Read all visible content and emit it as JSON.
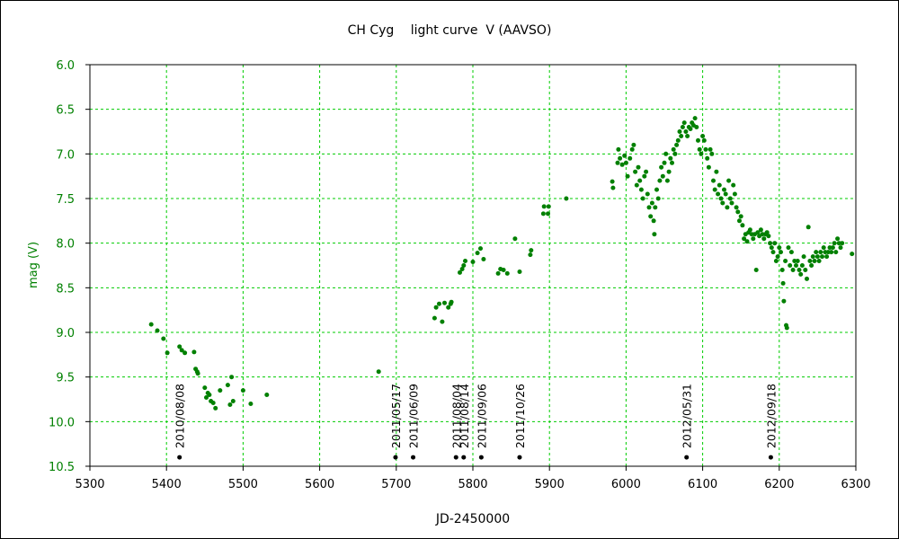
{
  "chart_data": {
    "type": "scatter",
    "title": "CH Cyg　 light curve  V (AAVSO)",
    "xlabel": "JD-2450000",
    "ylabel": "mag (V)",
    "xlim": [
      5300,
      6300
    ],
    "ylim": [
      6.0,
      10.5
    ],
    "y_inverted": true,
    "grid": true,
    "colors": {
      "points": "#008000",
      "y_ticks": "#008000",
      "x_ticks": "#000000",
      "grid": "#00cc00",
      "markers": "#000000"
    },
    "x_ticks": [
      5300,
      5400,
      5500,
      5600,
      5700,
      5800,
      5900,
      6000,
      6100,
      6200,
      6300
    ],
    "y_ticks": [
      "6.0",
      "6.5",
      "7.0",
      "7.5",
      "8.0",
      "8.5",
      "9.0",
      "9.5",
      "10.0",
      "10.5"
    ],
    "series": [
      {
        "points": [
          [
            5380,
            8.91
          ],
          [
            5388,
            8.98
          ],
          [
            5396,
            9.07
          ],
          [
            5401,
            9.23
          ],
          [
            5417,
            9.16
          ],
          [
            5420,
            9.2
          ],
          [
            5424,
            9.23
          ],
          [
            5436,
            9.22
          ],
          [
            5438,
            9.41
          ],
          [
            5440,
            9.44
          ],
          [
            5441,
            9.46
          ],
          [
            5450,
            9.62
          ],
          [
            5452,
            9.73
          ],
          [
            5454,
            9.68
          ],
          [
            5456,
            9.7
          ],
          [
            5458,
            9.77
          ],
          [
            5461,
            9.79
          ],
          [
            5464,
            9.85
          ],
          [
            5470,
            9.65
          ],
          [
            5480,
            9.59
          ],
          [
            5483,
            9.81
          ],
          [
            5485,
            9.5
          ],
          [
            5487,
            9.77
          ],
          [
            5500,
            9.65
          ],
          [
            5510,
            9.8
          ],
          [
            5531,
            9.7
          ],
          [
            5677,
            9.44
          ],
          [
            5750,
            8.84
          ],
          [
            5752,
            8.72
          ],
          [
            5756,
            8.68
          ],
          [
            5760,
            8.88
          ],
          [
            5763,
            8.67
          ],
          [
            5768,
            8.72
          ],
          [
            5771,
            8.68
          ],
          [
            5772,
            8.66
          ],
          [
            5783,
            8.33
          ],
          [
            5786,
            8.29
          ],
          [
            5788,
            8.25
          ],
          [
            5790,
            8.2
          ],
          [
            5800,
            8.21
          ],
          [
            5806,
            8.11
          ],
          [
            5810,
            8.06
          ],
          [
            5814,
            8.18
          ],
          [
            5833,
            8.34
          ],
          [
            5836,
            8.29
          ],
          [
            5840,
            8.3
          ],
          [
            5845,
            8.34
          ],
          [
            5855,
            7.95
          ],
          [
            5861,
            8.32
          ],
          [
            5875,
            8.13
          ],
          [
            5876,
            8.08
          ],
          [
            5892,
            7.67
          ],
          [
            5893,
            7.59
          ],
          [
            5898,
            7.67
          ],
          [
            5899,
            7.59
          ],
          [
            5922,
            7.5
          ],
          [
            5982,
            7.31
          ],
          [
            5983,
            7.38
          ],
          [
            5989,
            7.1
          ],
          [
            5990,
            6.95
          ],
          [
            5992,
            7.05
          ],
          [
            5995,
            7.12
          ],
          [
            5998,
            7.02
          ],
          [
            6000,
            7.1
          ],
          [
            6002,
            7.25
          ],
          [
            6005,
            7.05
          ],
          [
            6008,
            6.95
          ],
          [
            6010,
            6.9
          ],
          [
            6012,
            7.2
          ],
          [
            6014,
            7.35
          ],
          [
            6016,
            7.15
          ],
          [
            6018,
            7.3
          ],
          [
            6020,
            7.4
          ],
          [
            6022,
            7.5
          ],
          [
            6024,
            7.25
          ],
          [
            6026,
            7.2
          ],
          [
            6028,
            7.45
          ],
          [
            6030,
            7.6
          ],
          [
            6032,
            7.7
          ],
          [
            6034,
            7.55
          ],
          [
            6036,
            7.75
          ],
          [
            6037,
            7.9
          ],
          [
            6038,
            7.6
          ],
          [
            6040,
            7.4
          ],
          [
            6042,
            7.5
          ],
          [
            6044,
            7.3
          ],
          [
            6046,
            7.15
          ],
          [
            6048,
            7.25
          ],
          [
            6050,
            7.1
          ],
          [
            6052,
            7.0
          ],
          [
            6054,
            7.3
          ],
          [
            6056,
            7.2
          ],
          [
            6058,
            7.05
          ],
          [
            6060,
            7.1
          ],
          [
            6062,
            6.95
          ],
          [
            6064,
            7.0
          ],
          [
            6066,
            6.9
          ],
          [
            6068,
            6.85
          ],
          [
            6070,
            6.75
          ],
          [
            6072,
            6.8
          ],
          [
            6074,
            6.7
          ],
          [
            6076,
            6.65
          ],
          [
            6078,
            6.75
          ],
          [
            6080,
            6.8
          ],
          [
            6082,
            6.7
          ],
          [
            6084,
            6.72
          ],
          [
            6086,
            6.65
          ],
          [
            6088,
            6.68
          ],
          [
            6090,
            6.6
          ],
          [
            6092,
            6.7
          ],
          [
            6094,
            6.85
          ],
          [
            6096,
            6.95
          ],
          [
            6098,
            7.0
          ],
          [
            6100,
            6.8
          ],
          [
            6102,
            6.85
          ],
          [
            6104,
            6.95
          ],
          [
            6106,
            7.05
          ],
          [
            6108,
            7.15
          ],
          [
            6110,
            6.95
          ],
          [
            6112,
            7.0
          ],
          [
            6114,
            7.3
          ],
          [
            6116,
            7.4
          ],
          [
            6118,
            7.2
          ],
          [
            6120,
            7.45
          ],
          [
            6122,
            7.35
          ],
          [
            6124,
            7.5
          ],
          [
            6126,
            7.55
          ],
          [
            6128,
            7.4
          ],
          [
            6130,
            7.45
          ],
          [
            6132,
            7.6
          ],
          [
            6134,
            7.3
          ],
          [
            6136,
            7.5
          ],
          [
            6138,
            7.55
          ],
          [
            6140,
            7.35
          ],
          [
            6142,
            7.45
          ],
          [
            6144,
            7.6
          ],
          [
            6146,
            7.65
          ],
          [
            6148,
            7.75
          ],
          [
            6150,
            7.7
          ],
          [
            6152,
            7.8
          ],
          [
            6154,
            7.95
          ],
          [
            6156,
            7.9
          ],
          [
            6158,
            7.98
          ],
          [
            6160,
            7.88
          ],
          [
            6162,
            7.85
          ],
          [
            6164,
            7.9
          ],
          [
            6166,
            7.95
          ],
          [
            6168,
            7.9
          ],
          [
            6170,
            8.3
          ],
          [
            6172,
            7.88
          ],
          [
            6174,
            7.92
          ],
          [
            6176,
            7.85
          ],
          [
            6178,
            7.9
          ],
          [
            6180,
            7.95
          ],
          [
            6182,
            7.9
          ],
          [
            6184,
            7.88
          ],
          [
            6186,
            7.92
          ],
          [
            6188,
            8.0
          ],
          [
            6190,
            8.05
          ],
          [
            6192,
            8.1
          ],
          [
            6194,
            8.0
          ],
          [
            6196,
            8.2
          ],
          [
            6198,
            8.15
          ],
          [
            6200,
            8.05
          ],
          [
            6202,
            8.1
          ],
          [
            6204,
            8.3
          ],
          [
            6205,
            8.45
          ],
          [
            6206,
            8.65
          ],
          [
            6208,
            8.2
          ],
          [
            6209,
            8.92
          ],
          [
            6210,
            8.95
          ],
          [
            6212,
            8.05
          ],
          [
            6214,
            8.25
          ],
          [
            6216,
            8.1
          ],
          [
            6218,
            8.3
          ],
          [
            6220,
            8.2
          ],
          [
            6222,
            8.25
          ],
          [
            6224,
            8.2
          ],
          [
            6226,
            8.3
          ],
          [
            6228,
            8.35
          ],
          [
            6230,
            8.25
          ],
          [
            6232,
            8.15
          ],
          [
            6234,
            8.3
          ],
          [
            6236,
            8.4
          ],
          [
            6238,
            7.82
          ],
          [
            6240,
            8.2
          ],
          [
            6242,
            8.25
          ],
          [
            6244,
            8.15
          ],
          [
            6246,
            8.2
          ],
          [
            6248,
            8.1
          ],
          [
            6250,
            8.15
          ],
          [
            6252,
            8.2
          ],
          [
            6254,
            8.1
          ],
          [
            6256,
            8.15
          ],
          [
            6258,
            8.05
          ],
          [
            6260,
            8.1
          ],
          [
            6262,
            8.15
          ],
          [
            6264,
            8.1
          ],
          [
            6266,
            8.05
          ],
          [
            6268,
            8.1
          ],
          [
            6270,
            8.05
          ],
          [
            6272,
            8.0
          ],
          [
            6274,
            8.1
          ],
          [
            6276,
            7.95
          ],
          [
            6278,
            8.0
          ],
          [
            6280,
            8.05
          ],
          [
            6282,
            8.0
          ],
          [
            6295,
            8.12
          ]
        ]
      }
    ],
    "annotations": [
      {
        "date": "2010/08/08",
        "x": 5417
      },
      {
        "date": "2011/05/17",
        "x": 5699
      },
      {
        "date": "2011/06/09",
        "x": 5722
      },
      {
        "date": "2011/08/04",
        "x": 5778
      },
      {
        "date": "2011/08/14",
        "x": 5788
      },
      {
        "date": "2011/09/06",
        "x": 5811
      },
      {
        "date": "2011/10/26",
        "x": 5861
      },
      {
        "date": "2012/05/31",
        "x": 6079
      },
      {
        "date": "2012/09/18",
        "x": 6189
      }
    ],
    "annotation_marker_y": 10.4
  }
}
